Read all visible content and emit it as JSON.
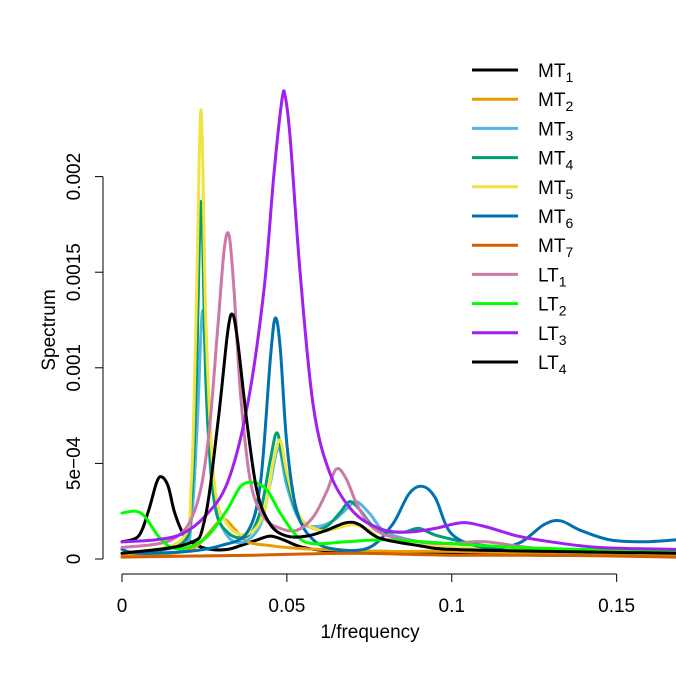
{
  "chart_data": {
    "type": "line",
    "xlabel": "1/frequency",
    "ylabel": "Spectrum",
    "xlim": [
      0,
      0.168
    ],
    "ylim": [
      0,
      0.0025
    ],
    "grid": false,
    "legend_position": "top-right",
    "x_ticks": [
      {
        "value": 0,
        "label": "0"
      },
      {
        "value": 0.05,
        "label": "0.05"
      },
      {
        "value": 0.1,
        "label": "0.1"
      },
      {
        "value": 0.15,
        "label": "0.15"
      }
    ],
    "y_ticks": [
      {
        "value": 0,
        "label": "0"
      },
      {
        "value": 0.0005,
        "label": "5e−04"
      },
      {
        "value": 0.001,
        "label": "0.001"
      },
      {
        "value": 0.0015,
        "label": "0.0015"
      },
      {
        "value": 0.002,
        "label": "0.002"
      }
    ],
    "series": [
      {
        "name": "MT",
        "sub": "1",
        "color": "#000000",
        "points": [
          [
            0,
            9e-05
          ],
          [
            0.005,
            0.00012
          ],
          [
            0.008,
            0.00025
          ],
          [
            0.0105,
            0.0004
          ],
          [
            0.012,
            0.00043
          ],
          [
            0.014,
            0.00038
          ],
          [
            0.016,
            0.00024
          ],
          [
            0.019,
            0.00012
          ],
          [
            0.023,
            7e-05
          ],
          [
            0.027,
            5e-05
          ],
          [
            0.032,
            5e-05
          ],
          [
            0.036,
            7e-05
          ],
          [
            0.041,
            0.0001
          ],
          [
            0.045,
            0.00012
          ],
          [
            0.049,
            0.0001
          ],
          [
            0.055,
            6e-05
          ],
          [
            0.065,
            4e-05
          ],
          [
            0.08,
            4e-05
          ],
          [
            0.1,
            3e-05
          ],
          [
            0.13,
            2e-05
          ],
          [
            0.168,
            2e-05
          ]
        ]
      },
      {
        "name": "MT",
        "sub": "2",
        "color": "#e69f00",
        "points": [
          [
            0,
            2e-05
          ],
          [
            0.015,
            3e-05
          ],
          [
            0.022,
            6e-05
          ],
          [
            0.026,
            0.00013
          ],
          [
            0.029,
            0.00019
          ],
          [
            0.031,
            0.00021
          ],
          [
            0.034,
            0.00016
          ],
          [
            0.038,
            9e-05
          ],
          [
            0.045,
            7e-05
          ],
          [
            0.05,
            6e-05
          ],
          [
            0.06,
            5e-05
          ],
          [
            0.08,
            4e-05
          ],
          [
            0.1,
            4e-05
          ],
          [
            0.13,
            3e-05
          ],
          [
            0.168,
            2e-05
          ]
        ]
      },
      {
        "name": "MT",
        "sub": "3",
        "color": "#56b4e9",
        "points": [
          [
            0,
            3e-05
          ],
          [
            0.018,
            7e-05
          ],
          [
            0.021,
            0.0002
          ],
          [
            0.0228,
            0.0007
          ],
          [
            0.0245,
            0.0013
          ],
          [
            0.026,
            0.0007
          ],
          [
            0.028,
            0.0003
          ],
          [
            0.032,
            0.00012
          ],
          [
            0.037,
            9e-05
          ],
          [
            0.042,
            0.00018
          ],
          [
            0.045,
            0.0004
          ],
          [
            0.0475,
            0.00058
          ],
          [
            0.05,
            0.00038
          ],
          [
            0.054,
            0.0002
          ],
          [
            0.059,
            0.00017
          ],
          [
            0.064,
            0.0002
          ],
          [
            0.068,
            0.00026
          ],
          [
            0.071,
            0.0003
          ],
          [
            0.075,
            0.00024
          ],
          [
            0.08,
            0.00014
          ],
          [
            0.09,
            9e-05
          ],
          [
            0.1,
            6e-05
          ],
          [
            0.13,
            4e-05
          ],
          [
            0.168,
            3e-05
          ]
        ]
      },
      {
        "name": "MT",
        "sub": "4",
        "color": "#009e73",
        "points": [
          [
            0,
            3e-05
          ],
          [
            0.018,
            8e-05
          ],
          [
            0.021,
            0.0003
          ],
          [
            0.0225,
            0.0009
          ],
          [
            0.024,
            0.00187
          ],
          [
            0.0255,
            0.0009
          ],
          [
            0.028,
            0.0003
          ],
          [
            0.032,
            0.00014
          ],
          [
            0.038,
            0.00012
          ],
          [
            0.042,
            0.00025
          ],
          [
            0.045,
            0.00052
          ],
          [
            0.047,
            0.00066
          ],
          [
            0.049,
            0.0005
          ],
          [
            0.053,
            0.00024
          ],
          [
            0.058,
            0.00016
          ],
          [
            0.062,
            0.00017
          ],
          [
            0.066,
            0.00024
          ],
          [
            0.069,
            0.0003
          ],
          [
            0.072,
            0.00026
          ],
          [
            0.077,
            0.00016
          ],
          [
            0.085,
            0.00014
          ],
          [
            0.09,
            0.00016
          ],
          [
            0.096,
            0.00012
          ],
          [
            0.11,
            7e-05
          ],
          [
            0.13,
            4e-05
          ],
          [
            0.168,
            3e-05
          ]
        ]
      },
      {
        "name": "MT",
        "sub": "5",
        "color": "#f0e442",
        "points": [
          [
            0,
            3e-05
          ],
          [
            0.018,
            0.0001
          ],
          [
            0.021,
            0.0004
          ],
          [
            0.0225,
            0.0013
          ],
          [
            0.024,
            0.00235
          ],
          [
            0.0255,
            0.0012
          ],
          [
            0.028,
            0.0004
          ],
          [
            0.032,
            0.00018
          ],
          [
            0.038,
            0.00013
          ],
          [
            0.043,
            0.00024
          ],
          [
            0.046,
            0.00052
          ],
          [
            0.048,
            0.00062
          ],
          [
            0.05,
            0.00045
          ],
          [
            0.054,
            0.00022
          ],
          [
            0.06,
            0.00015
          ],
          [
            0.065,
            0.00016
          ],
          [
            0.07,
            0.00018
          ],
          [
            0.075,
            0.00015
          ],
          [
            0.08,
            0.0001
          ],
          [
            0.1,
            6e-05
          ],
          [
            0.13,
            4e-05
          ],
          [
            0.168,
            3e-05
          ]
        ]
      },
      {
        "name": "MT",
        "sub": "6",
        "color": "#0072b2",
        "points": [
          [
            0,
            5e-05
          ],
          [
            0.005,
            3e-05
          ],
          [
            0.02,
            4e-05
          ],
          [
            0.03,
            7e-05
          ],
          [
            0.038,
            0.00014
          ],
          [
            0.042,
            0.0004
          ],
          [
            0.045,
            0.00105
          ],
          [
            0.0465,
            0.00126
          ],
          [
            0.048,
            0.0011
          ],
          [
            0.05,
            0.0006
          ],
          [
            0.053,
            0.00025
          ],
          [
            0.058,
            0.0001
          ],
          [
            0.065,
            5e-05
          ],
          [
            0.075,
            6e-05
          ],
          [
            0.082,
            0.00018
          ],
          [
            0.087,
            0.00034
          ],
          [
            0.091,
            0.00038
          ],
          [
            0.095,
            0.00032
          ],
          [
            0.1,
            0.00013
          ],
          [
            0.11,
            6e-05
          ],
          [
            0.12,
            8e-05
          ],
          [
            0.128,
            0.00018
          ],
          [
            0.133,
            0.0002
          ],
          [
            0.139,
            0.00015
          ],
          [
            0.148,
            0.0001
          ],
          [
            0.158,
            9e-05
          ],
          [
            0.168,
            0.0001
          ]
        ]
      },
      {
        "name": "MT",
        "sub": "7",
        "color": "#d55e00",
        "points": [
          [
            0,
            1e-05
          ],
          [
            0.04,
            2e-05
          ],
          [
            0.07,
            3e-05
          ],
          [
            0.1,
            2e-05
          ],
          [
            0.13,
            2e-05
          ],
          [
            0.168,
            1e-05
          ]
        ]
      },
      {
        "name": "LT",
        "sub": "1",
        "color": "#cc79a7",
        "points": [
          [
            0,
            6e-05
          ],
          [
            0.015,
            0.0001
          ],
          [
            0.022,
            0.00025
          ],
          [
            0.026,
            0.0006
          ],
          [
            0.029,
            0.0012
          ],
          [
            0.031,
            0.00162
          ],
          [
            0.0325,
            0.00169
          ],
          [
            0.034,
            0.0014
          ],
          [
            0.036,
            0.00085
          ],
          [
            0.039,
            0.0004
          ],
          [
            0.043,
            0.00022
          ],
          [
            0.048,
            0.00016
          ],
          [
            0.053,
            0.00015
          ],
          [
            0.058,
            0.00022
          ],
          [
            0.062,
            0.00035
          ],
          [
            0.065,
            0.00047
          ],
          [
            0.068,
            0.00042
          ],
          [
            0.072,
            0.00026
          ],
          [
            0.078,
            0.00014
          ],
          [
            0.09,
            9e-05
          ],
          [
            0.1,
            8e-05
          ],
          [
            0.11,
            9e-05
          ],
          [
            0.13,
            5e-05
          ],
          [
            0.168,
            4e-05
          ]
        ]
      },
      {
        "name": "LT",
        "sub": "2",
        "color": "#00ff00",
        "points": [
          [
            0,
            0.00024
          ],
          [
            0.004,
            0.00025
          ],
          [
            0.007,
            0.00022
          ],
          [
            0.011,
            0.00012
          ],
          [
            0.015,
            6e-05
          ],
          [
            0.02,
            6e-05
          ],
          [
            0.026,
            0.00012
          ],
          [
            0.032,
            0.00026
          ],
          [
            0.036,
            0.00038
          ],
          [
            0.04,
            0.0004
          ],
          [
            0.044,
            0.00036
          ],
          [
            0.048,
            0.00024
          ],
          [
            0.053,
            0.00012
          ],
          [
            0.058,
            8e-05
          ],
          [
            0.068,
            9e-05
          ],
          [
            0.08,
            0.0001
          ],
          [
            0.1,
            8e-05
          ],
          [
            0.12,
            6e-05
          ],
          [
            0.14,
            5e-05
          ],
          [
            0.168,
            4e-05
          ]
        ]
      },
      {
        "name": "LT",
        "sub": "3",
        "color": "#a020f0",
        "points": [
          [
            0,
            9e-05
          ],
          [
            0.01,
            0.0001
          ],
          [
            0.018,
            0.00013
          ],
          [
            0.025,
            0.00022
          ],
          [
            0.032,
            0.0004
          ],
          [
            0.038,
            0.0008
          ],
          [
            0.043,
            0.0014
          ],
          [
            0.046,
            0.002
          ],
          [
            0.0485,
            0.0024
          ],
          [
            0.0495,
            0.00242
          ],
          [
            0.051,
            0.0022
          ],
          [
            0.054,
            0.0015
          ],
          [
            0.058,
            0.0008
          ],
          [
            0.063,
            0.00045
          ],
          [
            0.07,
            0.00025
          ],
          [
            0.078,
            0.00016
          ],
          [
            0.086,
            0.00014
          ],
          [
            0.095,
            0.00016
          ],
          [
            0.103,
            0.00019
          ],
          [
            0.11,
            0.00017
          ],
          [
            0.12,
            0.00012
          ],
          [
            0.13,
            9e-05
          ],
          [
            0.145,
            6e-05
          ],
          [
            0.168,
            5e-05
          ]
        ]
      },
      {
        "name": "LT",
        "sub": "4",
        "color": "#000000",
        "points": [
          [
            0,
            3e-05
          ],
          [
            0.02,
            8e-05
          ],
          [
            0.025,
            0.0002
          ],
          [
            0.029,
            0.0007
          ],
          [
            0.032,
            0.00118
          ],
          [
            0.0335,
            0.00128
          ],
          [
            0.035,
            0.00115
          ],
          [
            0.038,
            0.0007
          ],
          [
            0.041,
            0.00035
          ],
          [
            0.045,
            0.00018
          ],
          [
            0.05,
            0.00012
          ],
          [
            0.056,
            0.00012
          ],
          [
            0.062,
            0.00015
          ],
          [
            0.068,
            0.00019
          ],
          [
            0.072,
            0.00018
          ],
          [
            0.078,
            0.00011
          ],
          [
            0.09,
            7e-05
          ],
          [
            0.1,
            5e-05
          ],
          [
            0.13,
            4e-05
          ],
          [
            0.168,
            3e-05
          ]
        ]
      }
    ]
  }
}
